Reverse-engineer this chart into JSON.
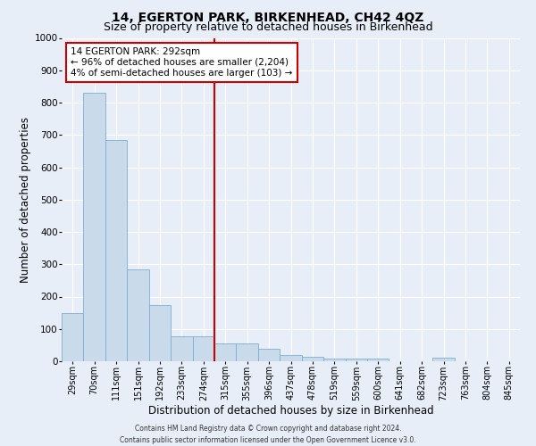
{
  "title": "14, EGERTON PARK, BIRKENHEAD, CH42 4QZ",
  "subtitle": "Size of property relative to detached houses in Birkenhead",
  "xlabel": "Distribution of detached houses by size in Birkenhead",
  "ylabel": "Number of detached properties",
  "bar_labels": [
    "29sqm",
    "70sqm",
    "111sqm",
    "151sqm",
    "192sqm",
    "233sqm",
    "274sqm",
    "315sqm",
    "355sqm",
    "396sqm",
    "437sqm",
    "478sqm",
    "519sqm",
    "559sqm",
    "600sqm",
    "641sqm",
    "682sqm",
    "723sqm",
    "763sqm",
    "804sqm",
    "845sqm"
  ],
  "bar_values": [
    150,
    830,
    685,
    285,
    175,
    78,
    78,
    55,
    55,
    40,
    20,
    15,
    8,
    8,
    8,
    0,
    0,
    10,
    0,
    0,
    0
  ],
  "bar_color": "#c9daea",
  "bar_edge_color": "#7bafd4",
  "property_line_x": 6.5,
  "annotation_text": "14 EGERTON PARK: 292sqm\n← 96% of detached houses are smaller (2,204)\n4% of semi-detached houses are larger (103) →",
  "annotation_box_color": "#ffffff",
  "annotation_box_edge_color": "#cc0000",
  "vline_color": "#cc0000",
  "ylim": [
    0,
    1000
  ],
  "yticks": [
    0,
    100,
    200,
    300,
    400,
    500,
    600,
    700,
    800,
    900,
    1000
  ],
  "bg_color": "#e8eef8",
  "plot_bg_color": "#e8eef8",
  "footer1": "Contains HM Land Registry data © Crown copyright and database right 2024.",
  "footer2": "Contains public sector information licensed under the Open Government Licence v3.0.",
  "title_fontsize": 10,
  "subtitle_fontsize": 9,
  "xlabel_fontsize": 8.5,
  "ylabel_fontsize": 8.5,
  "annotation_fontsize": 7.5,
  "tick_fontsize": 7,
  "ytick_fontsize": 7.5,
  "footer_fontsize": 5.5
}
